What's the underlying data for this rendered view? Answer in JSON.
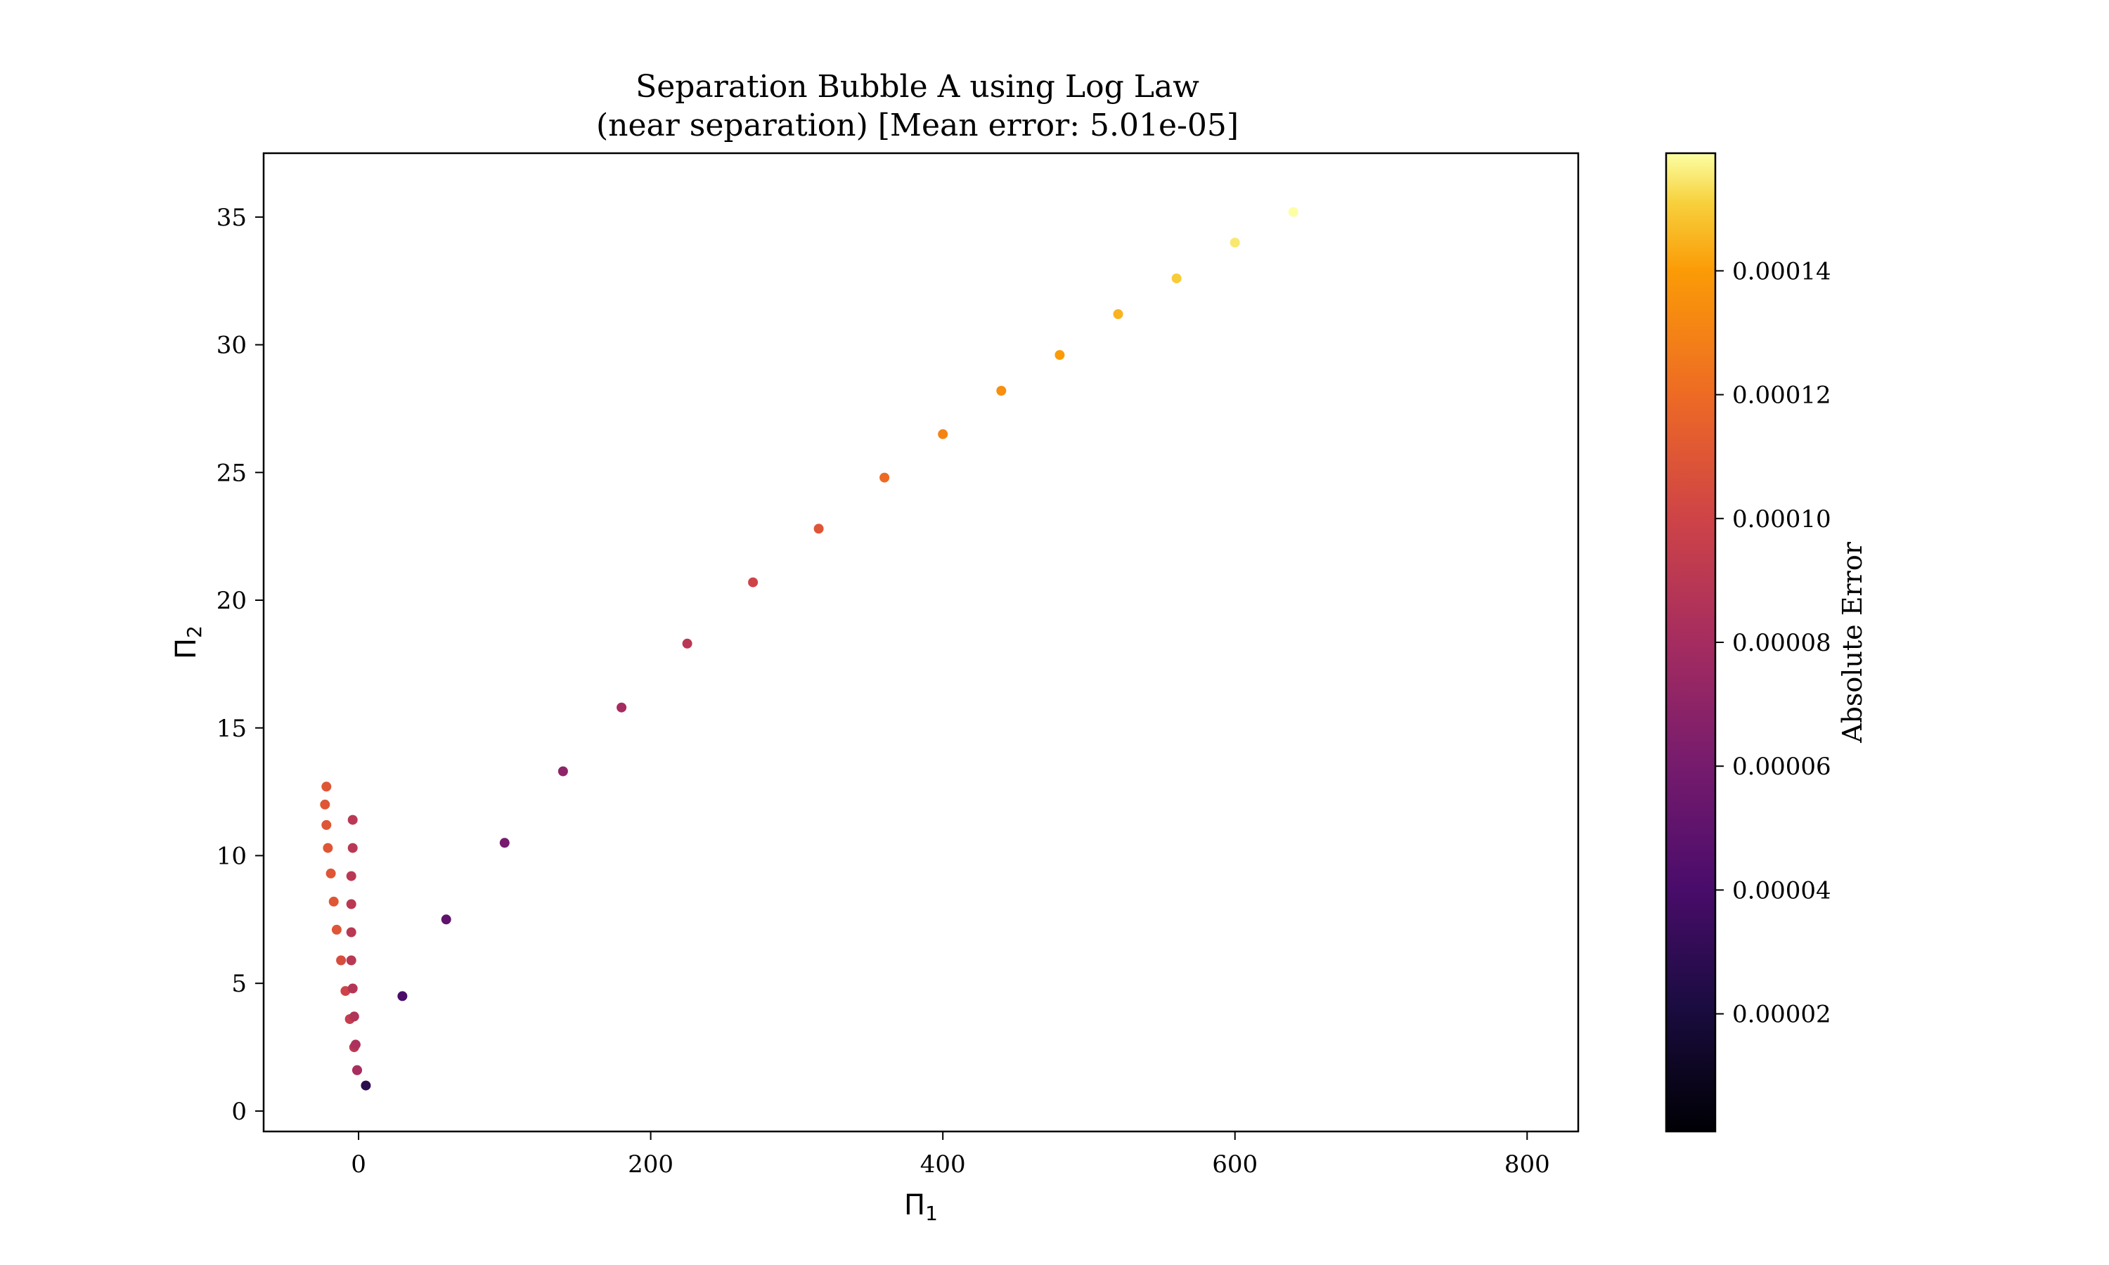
{
  "chart_data": {
    "type": "scatter",
    "title": [
      "Separation Bubble A using Log Law",
      "(near separation) [Mean error: 5.01e-05]"
    ],
    "xlabel": "Π",
    "xlabel_sub": "1",
    "ylabel": "Π",
    "ylabel_sub": "2",
    "xlim": [
      -65,
      835
    ],
    "ylim": [
      -0.8,
      37.5
    ],
    "x_ticks": [
      0,
      200,
      400,
      600,
      800
    ],
    "y_ticks": [
      0,
      5,
      10,
      15,
      20,
      25,
      30,
      35
    ],
    "colorbar": {
      "label": "Absolute Error",
      "colormap": "inferno",
      "range": [
        1e-06,
        0.000159
      ],
      "ticks": [
        2e-05,
        4e-05,
        6e-05,
        8e-05,
        0.0001,
        0.00012,
        0.00014
      ],
      "tick_labels": [
        "0.00002",
        "0.00004",
        "0.00006",
        "0.00008",
        "0.00010",
        "0.00012",
        "0.00014"
      ]
    },
    "grid": false,
    "marker_size": 7,
    "series": [
      {
        "points": [
          [
            -22,
            12.7
          ],
          [
            -23,
            12.0
          ],
          [
            -22,
            11.2
          ],
          [
            -21,
            10.3
          ],
          [
            -19,
            9.3
          ],
          [
            -17,
            8.2
          ],
          [
            -15,
            7.1
          ],
          [
            -12,
            5.9
          ],
          [
            -9,
            4.7
          ],
          [
            -6,
            3.6
          ],
          [
            -3,
            2.5
          ],
          [
            -1,
            1.6
          ]
        ],
        "errors": [
          0.00011,
          0.00011,
          0.00011,
          0.00011,
          0.00011,
          0.00011,
          0.00011,
          0.000105,
          0.0001,
          9.5e-05,
          9e-05,
          8.5e-05
        ]
      },
      {
        "points": [
          [
            -4,
            11.4
          ],
          [
            -4,
            10.3
          ],
          [
            -5,
            9.2
          ],
          [
            -5,
            8.1
          ],
          [
            -5,
            7.0
          ],
          [
            -5,
            5.9
          ],
          [
            -4,
            4.8
          ],
          [
            -3,
            3.7
          ],
          [
            -2,
            2.6
          ],
          [
            -1,
            1.6
          ]
        ],
        "errors": [
          9e-05,
          9e-05,
          9e-05,
          9e-05,
          9e-05,
          9e-05,
          8.8e-05,
          8.6e-05,
          8.4e-05,
          8.2e-05
        ]
      },
      {
        "points": [
          [
            5,
            1.0
          ],
          [
            30,
            4.5
          ],
          [
            60,
            7.5
          ],
          [
            100,
            10.5
          ],
          [
            140,
            13.3
          ],
          [
            180,
            15.8
          ],
          [
            225,
            18.3
          ],
          [
            270,
            20.7
          ],
          [
            315,
            22.8
          ],
          [
            360,
            24.8
          ],
          [
            400,
            26.5
          ],
          [
            440,
            28.2
          ],
          [
            480,
            29.6
          ],
          [
            520,
            31.2
          ],
          [
            560,
            32.6
          ],
          [
            600,
            34.0
          ],
          [
            640,
            35.2
          ]
        ],
        "errors": [
          2.8e-05,
          4e-05,
          5e-05,
          6e-05,
          7e-05,
          8e-05,
          9e-05,
          0.0001,
          0.00011,
          0.00012,
          0.00013,
          0.000135,
          0.00014,
          0.000145,
          0.00015,
          0.000155,
          0.000159
        ]
      }
    ]
  }
}
